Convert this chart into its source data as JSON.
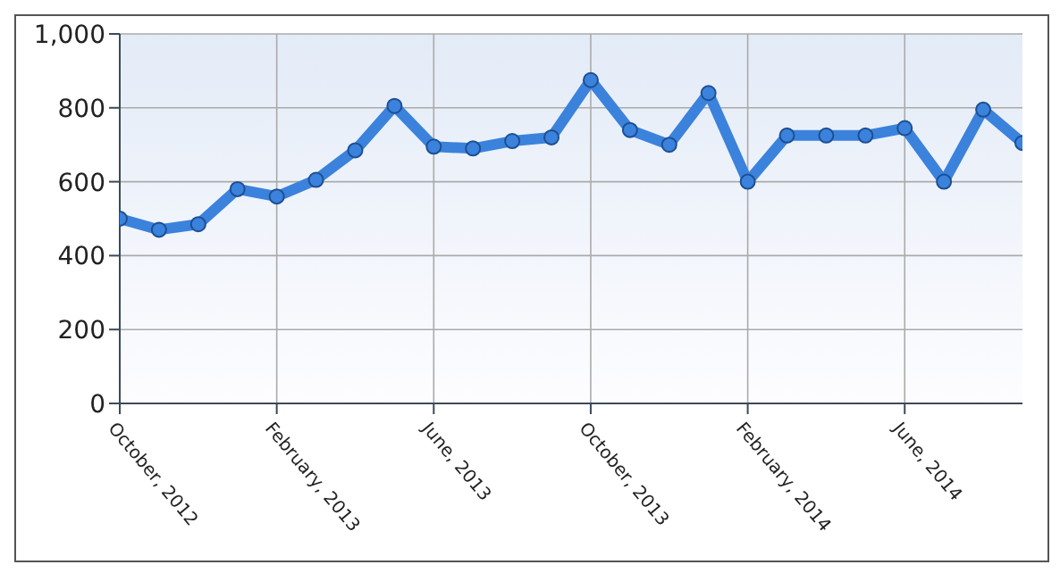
{
  "chart_data": {
    "type": "line",
    "categories": [
      "October, 2012",
      null,
      null,
      null,
      "February, 2013",
      null,
      null,
      null,
      "June, 2013",
      null,
      null,
      null,
      "October, 2013",
      null,
      null,
      null,
      "February, 2014",
      null,
      null,
      null,
      "June, 2014",
      null,
      null,
      null
    ],
    "series": [
      {
        "color": "#3b82dc",
        "values": [
          500,
          470,
          485,
          580,
          560,
          605,
          685,
          805,
          695,
          690,
          710,
          720,
          875,
          740,
          700,
          840,
          600,
          725,
          725,
          725,
          745,
          600,
          795,
          705
        ]
      }
    ],
    "ylim": [
      0,
      1000
    ],
    "yticks": [
      0,
      200,
      400,
      600,
      800,
      {
        "value": 1000,
        "label": "1,000"
      }
    ],
    "grid": true,
    "marker": "circle",
    "line_style": "solid"
  }
}
